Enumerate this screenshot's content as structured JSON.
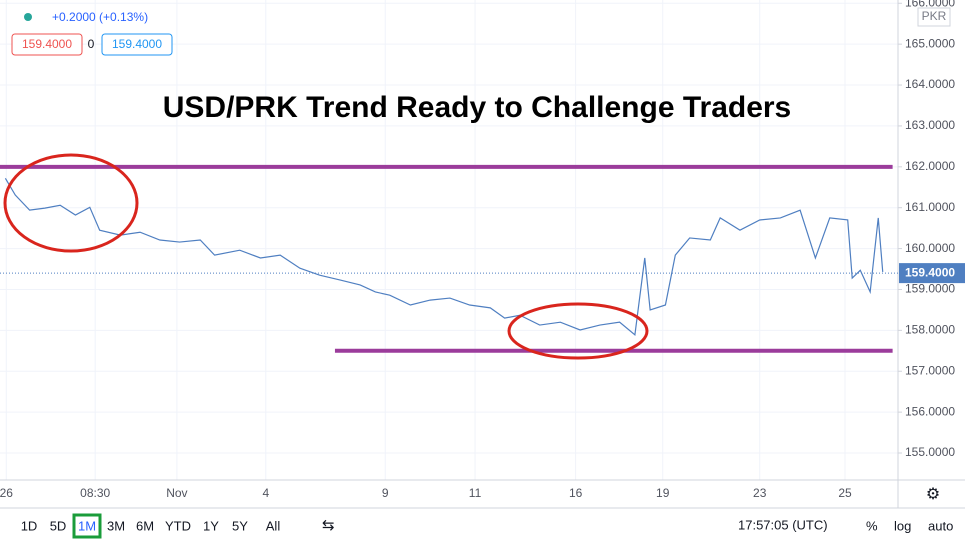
{
  "chart_data": {
    "type": "line",
    "title": "USD/PRK Trend Ready to Challenge Traders",
    "change": "+0.2000 (+0.13%)",
    "bid": "159.4000",
    "spread": "0",
    "ask": "159.4000",
    "currency": "PKR",
    "color": "#4f7fc1",
    "x": [
      0.6,
      1.7,
      3.3,
      5.0,
      6.7,
      8.4,
      10.0,
      11.1,
      13.4,
      15.6,
      17.8,
      20.0,
      22.3,
      23.9,
      26.7,
      29.0,
      31.2,
      33.4,
      35.6,
      37.9,
      40.1,
      41.8,
      43.4,
      45.7,
      47.9,
      50.1,
      52.3,
      54.6,
      56.2,
      57.9,
      60.1,
      62.4,
      64.6,
      66.8,
      69.0,
      70.7,
      71.8,
      72.4,
      74.1,
      75.2,
      76.8,
      79.1,
      80.2,
      82.4,
      84.6,
      86.9,
      89.1,
      90.8,
      92.4,
      94.4,
      94.9,
      95.8,
      96.9,
      97.8,
      98.3
    ],
    "values": [
      161.72,
      161.31,
      160.94,
      160.99,
      161.06,
      160.82,
      161.01,
      160.45,
      160.33,
      160.4,
      160.21,
      160.16,
      160.21,
      159.84,
      159.96,
      159.77,
      159.84,
      159.52,
      159.35,
      159.23,
      159.11,
      158.94,
      158.86,
      158.62,
      158.74,
      158.79,
      158.62,
      158.55,
      158.3,
      158.37,
      158.13,
      158.2,
      158.01,
      158.13,
      158.2,
      157.89,
      159.77,
      158.5,
      158.62,
      159.84,
      160.26,
      160.21,
      160.75,
      160.45,
      160.7,
      160.75,
      160.94,
      159.77,
      160.75,
      160.7,
      159.28,
      159.47,
      158.94,
      160.75,
      159.43
    ],
    "xlim": [
      0,
      100
    ],
    "xticks": [
      {
        "value": 0.7,
        "label": "26"
      },
      {
        "value": 10.6,
        "label": "08:30"
      },
      {
        "value": 19.7,
        "label": "Nov"
      },
      {
        "value": 29.6,
        "label": "4"
      },
      {
        "value": 42.9,
        "label": "9"
      },
      {
        "value": 52.9,
        "label": "11"
      },
      {
        "value": 64.1,
        "label": "16"
      },
      {
        "value": 73.8,
        "label": "19"
      },
      {
        "value": 84.6,
        "label": "23"
      },
      {
        "value": 94.1,
        "label": "25"
      }
    ],
    "ylim": [
      154.34,
      166.08
    ],
    "yticks": [
      {
        "value": 155,
        "label": "155.0000"
      },
      {
        "value": 156,
        "label": "156.0000"
      },
      {
        "value": 157,
        "label": "157.0000"
      },
      {
        "value": 158,
        "label": "158.0000"
      },
      {
        "value": 159,
        "label": "159.0000"
      },
      {
        "value": 160,
        "label": "160.0000"
      },
      {
        "value": 161,
        "label": "161.0000"
      },
      {
        "value": 162,
        "label": "162.0000"
      },
      {
        "value": 163,
        "label": "163.0000"
      },
      {
        "value": 164,
        "label": "164.0000"
      },
      {
        "value": 165,
        "label": "165.0000"
      },
      {
        "value": 166,
        "label": "166.0000"
      }
    ],
    "grid": true,
    "last_price": {
      "value": 159.4,
      "label": "159.4000"
    },
    "hlines": [
      {
        "value": 162,
        "x": [
          0,
          99.4
        ],
        "color": "#9b3c9b"
      },
      {
        "value": 157.5,
        "x": [
          37.3,
          99.4
        ],
        "color": "#9b3c9b"
      }
    ],
    "ranges": [
      "1D",
      "5D",
      "1M",
      "3M",
      "6M",
      "YTD",
      "1Y",
      "5Y",
      "All"
    ],
    "selected_range": "1M",
    "time": "17:57:05 (UTC)",
    "scale_buttons": [
      "%",
      "log",
      "auto"
    ]
  }
}
